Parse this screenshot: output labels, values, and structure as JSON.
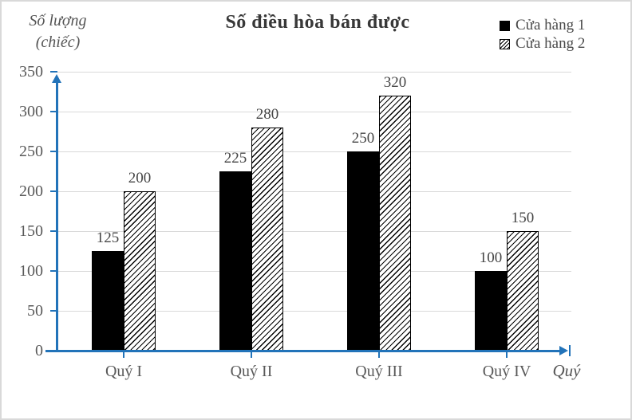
{
  "chart_data": {
    "type": "bar",
    "title": "Số điều hòa bán được",
    "ylabel_lines": [
      "Số lượng",
      "(chiếc)"
    ],
    "xlabel": "Quý",
    "categories": [
      "Quý I",
      "Quý II",
      "Quý III",
      "Quý IV"
    ],
    "series": [
      {
        "name": "Cửa hàng 1",
        "style": "solid",
        "values": [
          125,
          225,
          250,
          100
        ]
      },
      {
        "name": "Cửa hàng 2",
        "style": "hatched",
        "values": [
          200,
          280,
          320,
          150
        ]
      }
    ],
    "ylim": [
      0,
      350
    ],
    "yticks": [
      0,
      50,
      100,
      150,
      200,
      250,
      300,
      350
    ],
    "grid": true,
    "value_labels": true,
    "legend_position": "top-right",
    "colors": {
      "axis": "#2273b9",
      "gridline": "#d9d9d9",
      "solid_bar": "#000000",
      "hatch_line": "#000000",
      "hatch_background": "#ffffff",
      "tick_text": "#595959",
      "value_text": "#454545",
      "title_text": "#383838",
      "frame_border": "#d9d9d9"
    }
  }
}
